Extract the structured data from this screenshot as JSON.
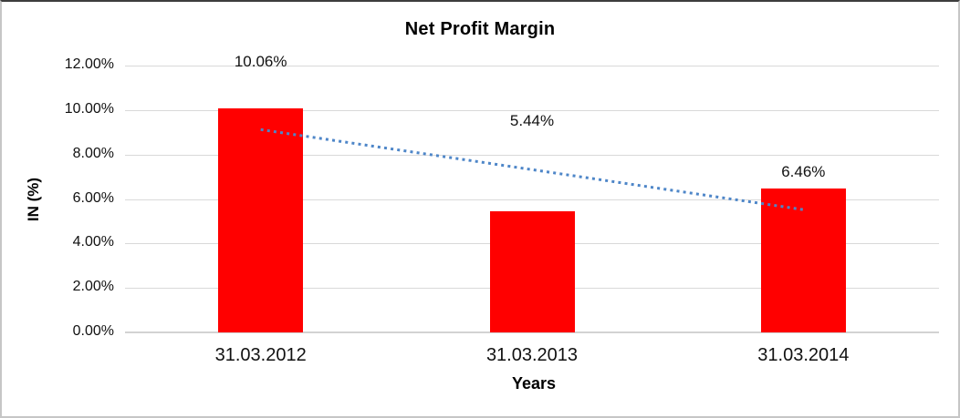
{
  "chart_data": {
    "type": "bar",
    "title": "Net Profit Margin",
    "xlabel": "Years",
    "ylabel": "IN (%)",
    "categories": [
      "31.03.2012",
      "31.03.2013",
      "31.03.2014"
    ],
    "values": [
      10.06,
      5.44,
      6.46
    ],
    "data_labels": [
      "10.06%",
      "5.44%",
      "6.46%"
    ],
    "ylim": [
      0,
      12
    ],
    "ytick_step": 2,
    "ytick_labels": [
      "0.00%",
      "2.00%",
      "4.00%",
      "6.00%",
      "8.00%",
      "10.00%",
      "12.00%"
    ],
    "grid": true,
    "legend": "none",
    "bar_color": "#ff0000",
    "gridline_color": "#d9d9d9",
    "trendline": {
      "type": "linear",
      "style": "dotted",
      "color": "#4e86c8",
      "start_value": 9.12,
      "end_value": 5.52
    }
  }
}
